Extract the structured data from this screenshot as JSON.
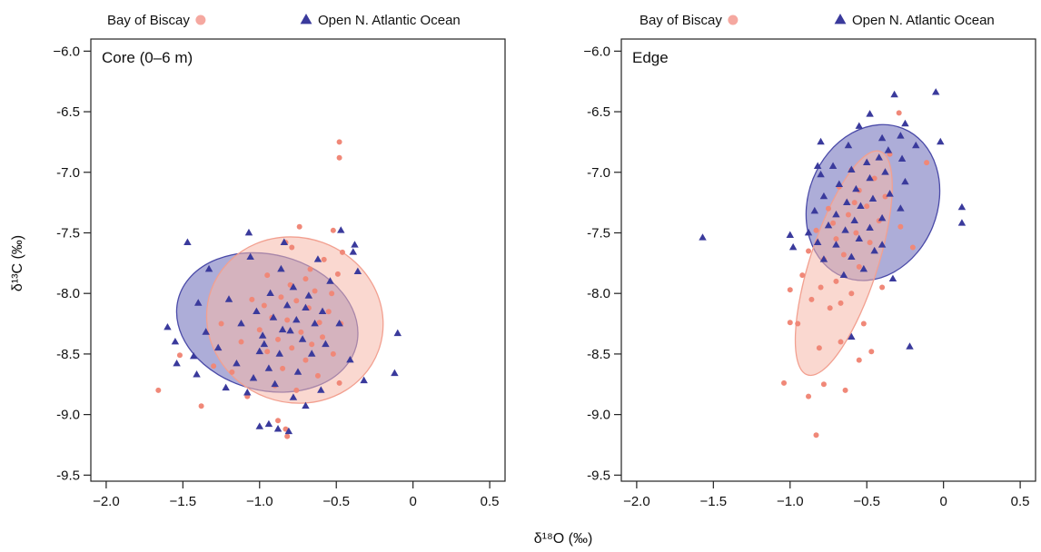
{
  "figure": {
    "xlabel": "δ¹⁸O (‰)",
    "ylabel": "δ¹³C (‰)"
  },
  "legend": {
    "items": [
      {
        "label": "Bay of Biscay",
        "marker": "circle",
        "color": "#f08878"
      },
      {
        "label": "Open N. Atlantic Ocean",
        "marker": "triangle",
        "color": "#3a3a9c"
      }
    ],
    "placement": "top, above each panel"
  },
  "colors": {
    "biscay_point": "#f08878",
    "biscay_ellipse_fill": "#f6b8aa",
    "biscay_ellipse_stroke": "#f2a090",
    "atlantic_point": "#3a3a9c",
    "atlantic_ellipse_fill": "#6a6ab8",
    "atlantic_ellipse_stroke": "#4a4aa8"
  },
  "chart_data": [
    {
      "type": "scatter",
      "title": "Core (0–6 m)",
      "xlim": [
        -2.1,
        0.6
      ],
      "ylim": [
        -9.55,
        -5.9
      ],
      "xticks": [
        -2.0,
        -1.5,
        -1.0,
        -0.5,
        0,
        0.5
      ],
      "xtick_labels": [
        "−2.0",
        "−1.5",
        "−1.0",
        "−0.5",
        "0",
        "0.5"
      ],
      "yticks": [
        -6.0,
        -6.5,
        -7.0,
        -7.5,
        -8.0,
        -8.5,
        -9.0,
        -9.5
      ],
      "ytick_labels": [
        "−6.0",
        "-6.5",
        "-7.0",
        "-7.5",
        "-8.0",
        "-8.5",
        "-9.0",
        "-9.5"
      ],
      "grid": false,
      "series": [
        {
          "name": "Bay of Biscay",
          "marker": "circle",
          "ellipse": {
            "cx": -0.77,
            "cy": -8.22,
            "rx": 0.58,
            "ry": 0.68,
            "angle": 20
          },
          "points": [
            [
              -0.48,
              -6.75
            ],
            [
              -0.48,
              -6.88
            ],
            [
              -0.74,
              -7.45
            ],
            [
              -0.52,
              -7.48
            ],
            [
              -0.46,
              -7.66
            ],
            [
              -0.83,
              -7.58
            ],
            [
              -0.79,
              -7.62
            ],
            [
              -0.58,
              -7.72
            ],
            [
              -0.49,
              -7.84
            ],
            [
              -0.95,
              -7.85
            ],
            [
              -0.7,
              -7.88
            ],
            [
              -0.8,
              -7.93
            ],
            [
              -0.64,
              -7.98
            ],
            [
              -0.53,
              -8.0
            ],
            [
              -0.86,
              -8.03
            ],
            [
              -0.76,
              -8.06
            ],
            [
              -1.05,
              -8.05
            ],
            [
              -0.68,
              -8.12
            ],
            [
              -0.55,
              -8.15
            ],
            [
              -0.92,
              -8.2
            ],
            [
              -0.82,
              -8.22
            ],
            [
              -0.61,
              -8.24
            ],
            [
              -0.47,
              -8.25
            ],
            [
              -1.0,
              -8.3
            ],
            [
              -0.73,
              -8.32
            ],
            [
              -0.59,
              -8.36
            ],
            [
              -0.88,
              -8.38
            ],
            [
              -1.12,
              -8.4
            ],
            [
              -0.66,
              -8.42
            ],
            [
              -0.79,
              -8.45
            ],
            [
              -0.95,
              -8.48
            ],
            [
              -0.52,
              -8.5
            ],
            [
              -1.52,
              -8.51
            ],
            [
              -0.7,
              -8.55
            ],
            [
              -1.3,
              -8.6
            ],
            [
              -0.85,
              -8.62
            ],
            [
              -1.18,
              -8.65
            ],
            [
              -0.62,
              -8.68
            ],
            [
              -0.48,
              -8.74
            ],
            [
              -0.9,
              -8.76
            ],
            [
              -0.76,
              -8.8
            ],
            [
              -1.66,
              -8.8
            ],
            [
              -1.08,
              -8.85
            ],
            [
              -1.38,
              -8.93
            ],
            [
              -0.88,
              -9.05
            ],
            [
              -0.83,
              -9.12
            ],
            [
              -0.82,
              -9.18
            ],
            [
              -0.97,
              -8.1
            ],
            [
              -0.67,
              -7.8
            ],
            [
              -1.25,
              -8.25
            ]
          ]
        },
        {
          "name": "Open N. Atlantic Ocean",
          "marker": "triangle",
          "ellipse": {
            "cx": -0.95,
            "cy": -8.24,
            "rx": 0.6,
            "ry": 0.56,
            "angle": 15
          },
          "points": [
            [
              -1.47,
              -7.58
            ],
            [
              -1.07,
              -7.5
            ],
            [
              -0.84,
              -7.58
            ],
            [
              -0.47,
              -7.48
            ],
            [
              -0.38,
              -7.6
            ],
            [
              -0.39,
              -7.66
            ],
            [
              -1.06,
              -7.7
            ],
            [
              -0.62,
              -7.72
            ],
            [
              -0.36,
              -7.82
            ],
            [
              -1.33,
              -7.8
            ],
            [
              -0.86,
              -7.8
            ],
            [
              -0.54,
              -7.9
            ],
            [
              -0.78,
              -7.95
            ],
            [
              -0.93,
              -8.0
            ],
            [
              -0.68,
              -8.02
            ],
            [
              -1.2,
              -8.05
            ],
            [
              -1.4,
              -8.08
            ],
            [
              -0.82,
              -8.1
            ],
            [
              -0.7,
              -8.12
            ],
            [
              -0.59,
              -8.15
            ],
            [
              -1.02,
              -8.15
            ],
            [
              -0.91,
              -8.2
            ],
            [
              -0.76,
              -8.22
            ],
            [
              -0.64,
              -8.25
            ],
            [
              -0.48,
              -8.25
            ],
            [
              -1.12,
              -8.25
            ],
            [
              -1.6,
              -8.28
            ],
            [
              -0.85,
              -8.3
            ],
            [
              -1.35,
              -8.32
            ],
            [
              -0.98,
              -8.35
            ],
            [
              -0.72,
              -8.38
            ],
            [
              -1.55,
              -8.4
            ],
            [
              -0.1,
              -8.33
            ],
            [
              -0.57,
              -8.42
            ],
            [
              -1.27,
              -8.45
            ],
            [
              -1.0,
              -8.48
            ],
            [
              -0.87,
              -8.5
            ],
            [
              -0.66,
              -8.5
            ],
            [
              -1.43,
              -8.52
            ],
            [
              -0.41,
              -8.55
            ],
            [
              -1.15,
              -8.58
            ],
            [
              -0.94,
              -8.62
            ],
            [
              -1.54,
              -8.58
            ],
            [
              -0.75,
              -8.65
            ],
            [
              -1.04,
              -8.7
            ],
            [
              -1.41,
              -8.67
            ],
            [
              -0.12,
              -8.66
            ],
            [
              -0.32,
              -8.72
            ],
            [
              -0.9,
              -8.75
            ],
            [
              -1.22,
              -8.78
            ],
            [
              -0.6,
              -8.8
            ],
            [
              -1.08,
              -8.82
            ],
            [
              -0.78,
              -8.86
            ],
            [
              -0.7,
              -8.93
            ],
            [
              -0.94,
              -9.08
            ],
            [
              -1.0,
              -9.1
            ],
            [
              -0.88,
              -9.12
            ],
            [
              -0.81,
              -9.14
            ],
            [
              -0.97,
              -8.42
            ],
            [
              -0.8,
              -8.31
            ]
          ]
        }
      ]
    },
    {
      "type": "scatter",
      "title": "Edge",
      "xlim": [
        -2.1,
        0.6
      ],
      "ylim": [
        -9.55,
        -5.9
      ],
      "xticks": [
        -2.0,
        -1.5,
        -1.0,
        -0.5,
        0,
        0.5
      ],
      "xtick_labels": [
        "−2.0",
        "−1.5",
        "−1.0",
        "−0.5",
        "0",
        "0.5"
      ],
      "yticks": [
        -6.0,
        -6.5,
        -7.0,
        -7.5,
        -8.0,
        -8.5,
        -9.0,
        -9.5
      ],
      "ytick_labels": [
        "−6.0",
        "-6.5",
        "-7.0",
        "-7.5",
        "-8.0",
        "-8.5",
        "-9.0",
        "-9.5"
      ],
      "grid": false,
      "series": [
        {
          "name": "Bay of Biscay",
          "marker": "circle",
          "ellipse": {
            "cx": -0.65,
            "cy": -7.75,
            "rx": 0.22,
            "ry": 0.97,
            "angle": 18
          },
          "points": [
            [
              -0.29,
              -6.51
            ],
            [
              -0.35,
              -6.85
            ],
            [
              -0.6,
              -6.98
            ],
            [
              -0.45,
              -7.05
            ],
            [
              -0.11,
              -6.92
            ],
            [
              -0.68,
              -7.12
            ],
            [
              -0.55,
              -7.15
            ],
            [
              -0.38,
              -7.2
            ],
            [
              -0.5,
              -7.28
            ],
            [
              -0.75,
              -7.3
            ],
            [
              -0.62,
              -7.35
            ],
            [
              -0.42,
              -7.4
            ],
            [
              -0.28,
              -7.45
            ],
            [
              -0.83,
              -7.48
            ],
            [
              -0.57,
              -7.5
            ],
            [
              -0.7,
              -7.55
            ],
            [
              -0.48,
              -7.58
            ],
            [
              -0.2,
              -7.62
            ],
            [
              -0.88,
              -7.65
            ],
            [
              -0.65,
              -7.68
            ],
            [
              -0.78,
              -7.72
            ],
            [
              -0.55,
              -7.78
            ],
            [
              -0.92,
              -7.85
            ],
            [
              -0.7,
              -7.9
            ],
            [
              -0.8,
              -7.95
            ],
            [
              -1.0,
              -7.97
            ],
            [
              -0.6,
              -8.0
            ],
            [
              -0.86,
              -8.05
            ],
            [
              -0.67,
              -8.08
            ],
            [
              -0.74,
              -8.12
            ],
            [
              -0.52,
              -8.25
            ],
            [
              -1.0,
              -8.24
            ],
            [
              -0.95,
              -8.25
            ],
            [
              -0.67,
              -8.4
            ],
            [
              -0.81,
              -8.45
            ],
            [
              -0.47,
              -8.48
            ],
            [
              -0.55,
              -8.55
            ],
            [
              -0.78,
              -8.75
            ],
            [
              -1.04,
              -8.74
            ],
            [
              -0.64,
              -8.8
            ],
            [
              -0.88,
              -8.85
            ],
            [
              -0.83,
              -9.17
            ],
            [
              -0.4,
              -7.95
            ],
            [
              -0.58,
              -7.25
            ],
            [
              -0.72,
              -7.42
            ]
          ]
        },
        {
          "name": "Open N. Atlantic Ocean",
          "marker": "triangle",
          "ellipse": {
            "cx": -0.46,
            "cy": -7.25,
            "rx": 0.42,
            "ry": 0.66,
            "angle": 22
          },
          "points": [
            [
              -0.05,
              -6.34
            ],
            [
              -0.32,
              -6.36
            ],
            [
              -0.25,
              -6.6
            ],
            [
              -0.48,
              -6.52
            ],
            [
              -0.55,
              -6.62
            ],
            [
              -0.28,
              -6.7
            ],
            [
              -0.4,
              -6.72
            ],
            [
              -0.62,
              -6.78
            ],
            [
              -0.36,
              -6.82
            ],
            [
              -0.18,
              -6.78
            ],
            [
              -0.02,
              -6.75
            ],
            [
              -0.42,
              -6.88
            ],
            [
              -0.27,
              -6.89
            ],
            [
              -0.5,
              -6.92
            ],
            [
              -0.72,
              -6.95
            ],
            [
              -0.6,
              -6.98
            ],
            [
              -0.38,
              -7.0
            ],
            [
              -0.8,
              -7.02
            ],
            [
              -0.48,
              -7.05
            ],
            [
              -0.25,
              -7.08
            ],
            [
              -0.68,
              -7.1
            ],
            [
              -0.57,
              -7.14
            ],
            [
              -0.35,
              -7.18
            ],
            [
              -0.78,
              -7.2
            ],
            [
              -0.46,
              -7.22
            ],
            [
              -0.63,
              -7.25
            ],
            [
              -0.54,
              -7.28
            ],
            [
              -0.28,
              -7.3
            ],
            [
              0.12,
              -7.29
            ],
            [
              -0.84,
              -7.32
            ],
            [
              -0.7,
              -7.35
            ],
            [
              -0.4,
              -7.38
            ],
            [
              -0.58,
              -7.4
            ],
            [
              -0.75,
              -7.44
            ],
            [
              0.12,
              -7.42
            ],
            [
              -0.48,
              -7.46
            ],
            [
              -0.64,
              -7.48
            ],
            [
              -0.88,
              -7.5
            ],
            [
              -1.0,
              -7.52
            ],
            [
              -0.55,
              -7.55
            ],
            [
              -1.57,
              -7.54
            ],
            [
              -0.82,
              -7.58
            ],
            [
              -0.7,
              -7.6
            ],
            [
              -0.98,
              -7.62
            ],
            [
              -0.45,
              -7.65
            ],
            [
              -0.6,
              -7.7
            ],
            [
              -0.78,
              -7.72
            ],
            [
              -0.52,
              -7.8
            ],
            [
              -0.65,
              -7.85
            ],
            [
              -0.33,
              -7.88
            ],
            [
              -0.6,
              -8.36
            ],
            [
              -0.22,
              -8.44
            ],
            [
              -0.82,
              -6.95
            ],
            [
              -0.8,
              -6.75
            ],
            [
              -0.4,
              -7.6
            ]
          ]
        }
      ]
    }
  ]
}
